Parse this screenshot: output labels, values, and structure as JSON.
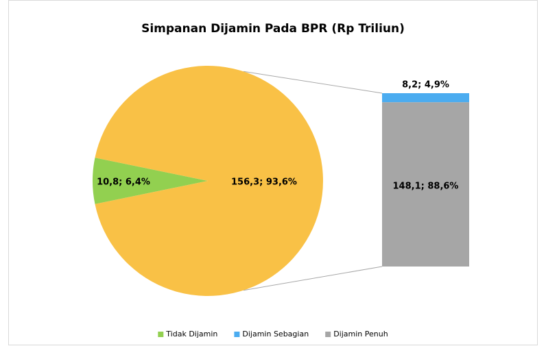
{
  "chart_data": {
    "type": "bar-of-pie",
    "title": "Simpanan Dijamin Pada BPR (Rp Triliun)",
    "pie": {
      "names": [
        "Tidak Dijamin",
        null
      ],
      "values": [
        10.8,
        156.3
      ],
      "percents": [
        6.4,
        93.6
      ],
      "value_labels": [
        "10,8; 6,4%",
        "156,3; 93,6%"
      ],
      "colors": [
        "#92d050",
        "#f9c146"
      ]
    },
    "bar": {
      "names": [
        "Dijamin Sebagian",
        "Dijamin Penuh"
      ],
      "values": [
        8.2,
        148.1
      ],
      "percents": [
        4.9,
        88.6
      ],
      "value_labels": [
        "8,2; 4,9%",
        "148,1; 88,6%"
      ],
      "colors": [
        "#4bacf0",
        "#a6a6a6"
      ]
    },
    "legend": "bottom"
  }
}
